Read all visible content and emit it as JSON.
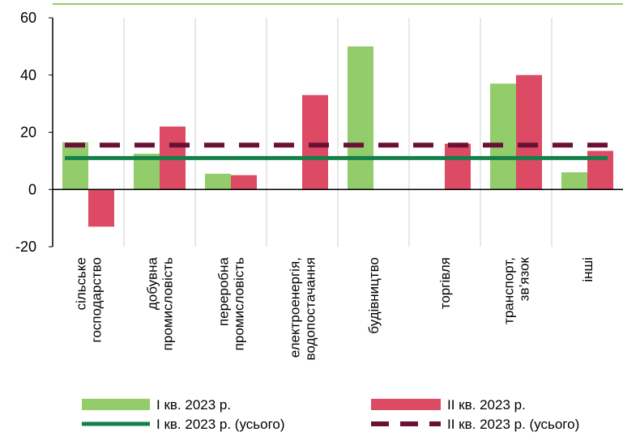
{
  "chart_data": {
    "type": "bar",
    "categories": [
      [
        "сільське",
        "господарство"
      ],
      [
        "добувна",
        "промисловість"
      ],
      [
        "переробна",
        "промисловість"
      ],
      [
        "електроенергія,",
        "водопостачання"
      ],
      [
        "будівництво"
      ],
      [
        "торгівля"
      ],
      [
        "транспорт,",
        "зв’язок"
      ],
      [
        "інші"
      ]
    ],
    "series": [
      {
        "name": "І кв. 2023 р.",
        "color": "#92cc6b",
        "values": [
          16.5,
          12.5,
          5.5,
          0,
          50,
          0,
          37,
          6
        ]
      },
      {
        "name": "ІІ кв. 2023 р.",
        "color": "#dc4a64",
        "values": [
          -13,
          22,
          5,
          33,
          0,
          16,
          40,
          13.5
        ]
      }
    ],
    "reference_lines": [
      {
        "name": "І кв. 2023 р. (усього)",
        "value": 11,
        "color": "#13804a",
        "style": "solid"
      },
      {
        "name": "ІІ кв. 2023 р. (усього)",
        "value": 15.5,
        "color": "#6a1035",
        "style": "dashed"
      }
    ],
    "ylim": [
      -20,
      60
    ],
    "yticks": [
      -20,
      0,
      20,
      40,
      60
    ],
    "grid": "vertical",
    "legend": "bottom"
  }
}
